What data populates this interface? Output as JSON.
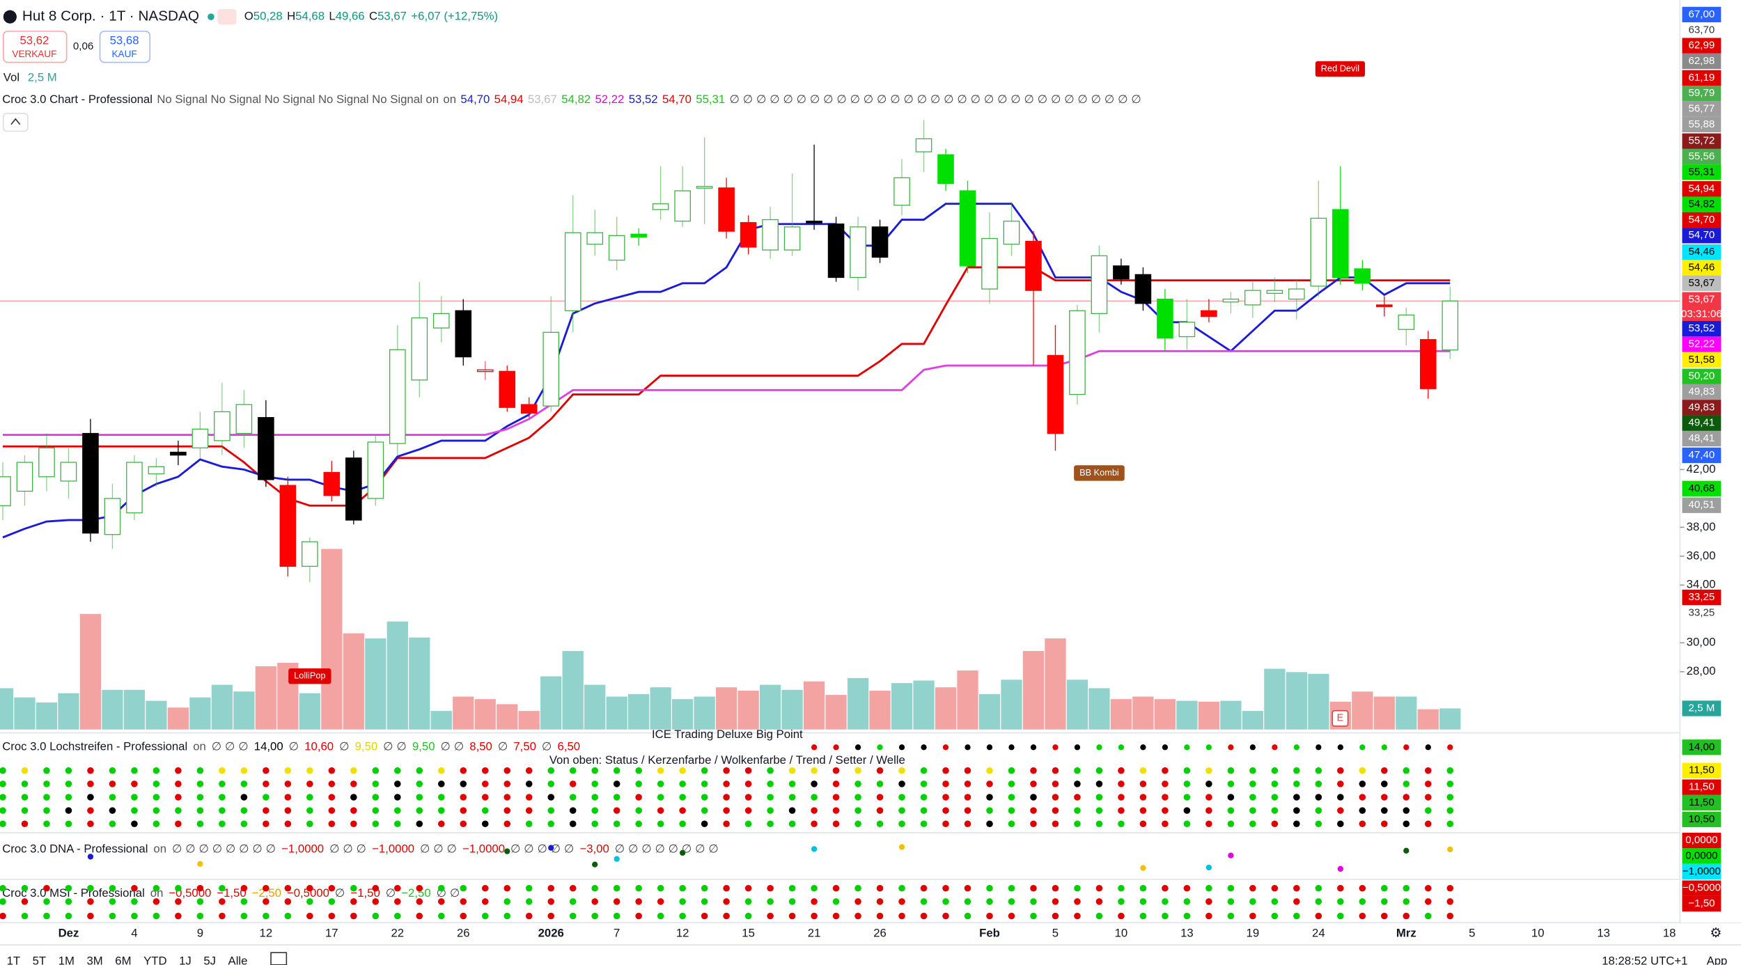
{
  "header": {
    "symbol": "Hut 8 Corp. · 1T · NASDAQ",
    "ohlc_labels": [
      "O",
      "H",
      "L",
      "C"
    ],
    "ohlc_values": [
      "50,28",
      "54,68",
      "49,66",
      "53,67"
    ],
    "change": "+6,07 (+12,75%)",
    "sell_price": "53,62",
    "sell_label": "VERKAUF",
    "spread": "0,06",
    "buy_price": "53,68",
    "buy_label": "KAUF",
    "vol_label": "Vol",
    "vol_value": "2,5 M"
  },
  "chart_legend": {
    "name": "Croc 3.0 Chart - Professional",
    "signals": "No Signal No Signal No Signal No Signal No Signal on",
    "status": "on",
    "values": [
      {
        "label": "54,70",
        "color": "#1a1ad9"
      },
      {
        "label": "54,94",
        "color": "#e00000"
      },
      {
        "label": "53,67",
        "color": "#bdbdbd"
      },
      {
        "label": "54,82",
        "color": "#22c022"
      },
      {
        "label": "52,22",
        "color": "#e000e0"
      },
      {
        "label": "53,52",
        "color": "#1a1ad9"
      },
      {
        "label": "54,70",
        "color": "#e00000"
      },
      {
        "label": "55,31",
        "color": "#22c022"
      }
    ],
    "symbols": "∅ ∅ ∅ ∅ ∅ ∅ ∅ ∅ ∅ ∅ ∅ ∅ ∅ ∅ ∅ ∅ ∅ ∅ ∅ ∅ ∅ ∅ ∅ ∅ ∅ ∅ ∅ ∅ ∅ ∅ ∅"
  },
  "price_axis": {
    "ylim": [
      24,
      74.5
    ],
    "ticks": [
      {
        "value": 42,
        "label": "42,00"
      },
      {
        "value": 38,
        "label": "38,00"
      },
      {
        "value": 36,
        "label": "36,00"
      },
      {
        "value": 34,
        "label": "34,00"
      },
      {
        "value": 30,
        "label": "30,00"
      },
      {
        "value": 28,
        "label": "28,00"
      }
    ]
  },
  "candle_colors": {
    "up": "#3cb043",
    "down": "#e00000"
  },
  "candles": [
    [
      39.5,
      42.5,
      38.5,
      41.5,
      "#ffffff"
    ],
    [
      40.5,
      43,
      39.5,
      42.5,
      "#ffffff"
    ],
    [
      41.5,
      44.5,
      40.5,
      43.5,
      "#ffffff"
    ],
    [
      41.2,
      43.5,
      40,
      42.5,
      "#ffffff"
    ],
    [
      44.5,
      45.5,
      37,
      37.6,
      "#000000"
    ],
    [
      37.5,
      41,
      36.5,
      40,
      "#ffffff"
    ],
    [
      39,
      43,
      38.5,
      42.5,
      "#ffffff"
    ],
    [
      41.7,
      42.8,
      40.8,
      42.2,
      "#ffffff"
    ],
    [
      43.2,
      44,
      42.3,
      43,
      "#000000"
    ],
    [
      43.5,
      46,
      42.8,
      44.8,
      "#ffffff"
    ],
    [
      44,
      48,
      43,
      46,
      "#ffffff"
    ],
    [
      44.5,
      47.5,
      43.5,
      46.5,
      "#ffffff"
    ],
    [
      45.6,
      46.8,
      40.8,
      41.3,
      "#000000"
    ],
    [
      40.9,
      41.5,
      34.6,
      35.3,
      "#ff0000"
    ],
    [
      35.3,
      37.3,
      34.2,
      37,
      "#ffffff"
    ],
    [
      41.8,
      42.6,
      39.8,
      40.2,
      "#ff0000"
    ],
    [
      42.8,
      43.3,
      38.2,
      38.5,
      "#000000"
    ],
    [
      40,
      44.4,
      39.5,
      43.9,
      "#ffffff"
    ],
    [
      43.8,
      52,
      43,
      50.3,
      "#ffffff"
    ],
    [
      48.2,
      55,
      47,
      52.5,
      "#ffffff"
    ],
    [
      51.8,
      54,
      50.8,
      52.8,
      "#ffffff"
    ],
    [
      53,
      53.8,
      49.2,
      49.8,
      "#000000"
    ],
    [
      48.9,
      49.5,
      48.2,
      48.8,
      "#ffffff"
    ],
    [
      48.8,
      49.2,
      46,
      46.3,
      "#ff0000"
    ],
    [
      46.5,
      47,
      45.6,
      45.9,
      "#ff0000"
    ],
    [
      46.4,
      54,
      46,
      51.5,
      "#ffffff"
    ],
    [
      53,
      61,
      51.5,
      58.4,
      "#ffffff"
    ],
    [
      57.6,
      60,
      56.8,
      58.4,
      "#ffffff"
    ],
    [
      56.5,
      59.5,
      55.8,
      58.2,
      "#ffffff"
    ],
    [
      58.1,
      58.7,
      57.5,
      58.3,
      "#00e000"
    ],
    [
      60,
      63,
      59.3,
      60.4,
      "#ffffff"
    ],
    [
      59.2,
      63,
      58.8,
      61.3,
      "#ffffff"
    ],
    [
      61.5,
      65,
      59,
      61.6,
      "#ffffff"
    ],
    [
      61.5,
      62.2,
      58,
      58.5,
      "#ff0000"
    ],
    [
      59.1,
      59.6,
      56.9,
      57.4,
      "#ff0000"
    ],
    [
      57.2,
      60.2,
      56.6,
      59.3,
      "#ffffff"
    ],
    [
      57.2,
      62.5,
      56.8,
      58.8,
      "#ffffff"
    ],
    [
      59.2,
      64.5,
      58.6,
      59.1,
      "#000000"
    ],
    [
      59,
      59.5,
      55,
      55.3,
      "#000000"
    ],
    [
      55.3,
      59.5,
      54.4,
      58.8,
      "#ffffff"
    ],
    [
      58.8,
      59.3,
      56.3,
      56.7,
      "#000000"
    ],
    [
      60.3,
      63.5,
      59.6,
      62.2,
      "#ffffff"
    ],
    [
      64,
      66.2,
      62.6,
      64.9,
      "#ffffff"
    ],
    [
      63.8,
      64.2,
      61.3,
      61.8,
      "#00e000"
    ],
    [
      61.3,
      62,
      55.6,
      56.1,
      "#00e000"
    ],
    [
      54.5,
      59.8,
      53.5,
      58,
      "#ffffff"
    ],
    [
      57.6,
      60.5,
      56.8,
      59.2,
      "#ffffff"
    ],
    [
      57.8,
      58.5,
      49.2,
      54.4,
      "#ff0000"
    ],
    [
      49.9,
      52,
      43.3,
      44.5,
      "#ff0000"
    ],
    [
      47.2,
      53.4,
      46.5,
      53,
      "#ffffff"
    ],
    [
      52.8,
      57.5,
      51.5,
      56.8,
      "#ffffff"
    ],
    [
      56.1,
      56.6,
      54.8,
      55.2,
      "#000000"
    ],
    [
      55.5,
      56,
      53,
      53.5,
      "#000000"
    ],
    [
      53.8,
      54.5,
      50.2,
      51.1,
      "#00e000"
    ],
    [
      51.2,
      53.8,
      50.3,
      52.2,
      "#ffffff"
    ],
    [
      53,
      53.8,
      52.2,
      52.6,
      "#ff0000"
    ],
    [
      53.6,
      54.3,
      52.8,
      53.8,
      "#ffffff"
    ],
    [
      53.4,
      55,
      52.5,
      54.4,
      "#ffffff"
    ],
    [
      54.2,
      55.3,
      53.6,
      54.4,
      "#ffffff"
    ],
    [
      53.8,
      55.2,
      52.4,
      54.5,
      "#ffffff"
    ],
    [
      54.7,
      62,
      54,
      59.4,
      "#ffffff"
    ],
    [
      60,
      63,
      54.8,
      55.3,
      "#00e000"
    ],
    [
      55.9,
      56.5,
      54.4,
      54.9,
      "#00e000"
    ],
    [
      53.4,
      54,
      52.6,
      53.3,
      "#ff0000"
    ],
    [
      51.7,
      53.2,
      50.6,
      52.7,
      "#ffffff"
    ],
    [
      51,
      51.6,
      46.9,
      47.6,
      "#ff0000"
    ],
    [
      50.28,
      54.68,
      49.66,
      53.67,
      "#ffffff"
    ]
  ],
  "volume": [
    4.9,
    3.8,
    3.2,
    4.3,
    13.7,
    4.7,
    4.7,
    3.4,
    2.6,
    3.8,
    5.3,
    4.5,
    7.5,
    7.9,
    4.3,
    21.4,
    11.4,
    10.8,
    12.8,
    10.9,
    2.2,
    3.9,
    3.6,
    3.0,
    2.2,
    6.3,
    9.3,
    5.3,
    3.9,
    4.2,
    5.0,
    3.6,
    3.9,
    5.0,
    4.6,
    5.3,
    4.7,
    5.7,
    4.1,
    6.1,
    4.6,
    5.5,
    5.8,
    5.0,
    7.0,
    4.2,
    5.9,
    9.3,
    10.8,
    5.9,
    4.9,
    3.6,
    3.9,
    3.6,
    3.4,
    3.3,
    3.4,
    2.2,
    7.2,
    6.8,
    6.6,
    3.3,
    4.5,
    3.9,
    3.9,
    2.4,
    2.5
  ],
  "volume_colors": {
    "up": "#92d2cc",
    "down": "#f4a3a3"
  },
  "lines": [
    {
      "color": "#e00000",
      "values": [
        43.6,
        43.6,
        43.6,
        43.6,
        43.6,
        43.6,
        43.6,
        43.6,
        43.6,
        43.6,
        43.6,
        42.5,
        41.2,
        40,
        39.5,
        39.5,
        39.5,
        40.8,
        42.8,
        42.8,
        42.8,
        42.8,
        42.8,
        43.5,
        44.2,
        45.5,
        47.2,
        47.2,
        47.2,
        47.2,
        48.5,
        48.5,
        48.5,
        48.5,
        48.5,
        48.5,
        48.5,
        48.5,
        48.5,
        48.5,
        49.5,
        50.7,
        50.7,
        53.4,
        56,
        56,
        56,
        56,
        55.1,
        55.1,
        55.1,
        55.1,
        55.1,
        55.1,
        55.1,
        55.1,
        55.1,
        55.1,
        55.1,
        55.1,
        55.1,
        55.1,
        55.1,
        55.1,
        55.1,
        55.1,
        55.1
      ]
    },
    {
      "color": "#1a1ad9",
      "values": [
        37.3,
        37.9,
        38.4,
        38.5,
        38.5,
        38.8,
        40.2,
        41,
        41.5,
        42.7,
        42.2,
        42,
        41.5,
        41.3,
        41.3,
        40.8,
        40.5,
        41,
        42.9,
        43.4,
        44,
        44,
        44,
        45,
        45.8,
        48.5,
        52.8,
        53.5,
        53.9,
        54.3,
        54.3,
        54.9,
        54.9,
        56,
        58.6,
        59,
        59,
        59,
        59,
        57.5,
        57.5,
        59.3,
        59.3,
        60.4,
        60.4,
        60.4,
        60.4,
        58.3,
        55.3,
        55.3,
        55.3,
        54.3,
        53.7,
        52.2,
        52.2,
        51.2,
        50.2,
        51.6,
        53,
        53,
        54.2,
        55.3,
        55.3,
        54.1,
        54.9,
        54.9,
        54.9
      ]
    },
    {
      "color": "#e040e0",
      "values": [
        44.4,
        44.4,
        44.4,
        44.4,
        44.4,
        44.4,
        44.4,
        44.4,
        44.4,
        44.4,
        44.4,
        44.4,
        44.4,
        44.4,
        44.4,
        44.4,
        44.4,
        44.4,
        44.4,
        44.4,
        44.4,
        44.4,
        44.4,
        44.8,
        45.5,
        46.5,
        47.5,
        47.5,
        47.5,
        47.5,
        47.5,
        47.5,
        47.5,
        47.5,
        47.5,
        47.5,
        47.5,
        47.5,
        47.5,
        47.5,
        47.5,
        47.5,
        48.9,
        49.2,
        49.2,
        49.2,
        49.2,
        49.2,
        49.2,
        49.6,
        50.2,
        50.2,
        50.2,
        50.2,
        50.2,
        50.2,
        50.2,
        50.2,
        50.2,
        50.2,
        50.2,
        50.2,
        50.2,
        50.2,
        50.2,
        50.2,
        50.2
      ]
    }
  ],
  "last_price": {
    "value": 53.67,
    "countdown": "03:31:06"
  },
  "price_tags": [
    {
      "label": "67,00",
      "bg": "#2962ff",
      "fg": "#fff"
    },
    {
      "label": "63,70",
      "bg": "#ffffff",
      "fg": "#333"
    },
    {
      "label": "62,99",
      "bg": "#e00000",
      "fg": "#fff"
    },
    {
      "label": "62,98",
      "bg": "#8a8a8a",
      "fg": "#fff"
    },
    {
      "label": "61,19",
      "bg": "#e00000",
      "fg": "#fff"
    },
    {
      "label": "59,79",
      "bg": "#4caf50",
      "fg": "#fff"
    },
    {
      "label": "56,77",
      "bg": "#9e9e9e",
      "fg": "#fff"
    },
    {
      "label": "55,88",
      "bg": "#9e9e9e",
      "fg": "#fff"
    },
    {
      "label": "55,72",
      "bg": "#8b1a1a",
      "fg": "#fff"
    },
    {
      "label": "55,56",
      "bg": "#4caf50",
      "fg": "#fff"
    },
    {
      "label": "55,31",
      "bg": "#00e000",
      "fg": "#000"
    },
    {
      "label": "54,94",
      "bg": "#e00000",
      "fg": "#fff"
    },
    {
      "label": "54,82",
      "bg": "#00e000",
      "fg": "#000"
    },
    {
      "label": "54,70",
      "bg": "#e00000",
      "fg": "#fff"
    },
    {
      "label": "54,70",
      "bg": "#1a1ad9",
      "fg": "#fff"
    },
    {
      "label": "54,46",
      "bg": "#00e5ff",
      "fg": "#000"
    },
    {
      "label": "54,46",
      "bg": "#ffee00",
      "fg": "#000"
    },
    {
      "label": "53,67",
      "bg": "#bdbdbd",
      "fg": "#000"
    },
    {
      "label": "53,67",
      "bg": "#f23645",
      "fg": "#fff"
    },
    {
      "label": "53,52",
      "bg": "#1a1ad9",
      "fg": "#fff"
    },
    {
      "label": "52,22",
      "bg": "#ff00ff",
      "fg": "#fff"
    },
    {
      "label": "51,58",
      "bg": "#ffee00",
      "fg": "#000"
    },
    {
      "label": "50,20",
      "bg": "#22c022",
      "fg": "#fff"
    },
    {
      "label": "49,83",
      "bg": "#9e9e9e",
      "fg": "#fff"
    },
    {
      "label": "49,83",
      "bg": "#8b1a1a",
      "fg": "#fff"
    },
    {
      "label": "49,41",
      "bg": "#0a5c0a",
      "fg": "#fff"
    },
    {
      "label": "48,41",
      "bg": "#9e9e9e",
      "fg": "#fff"
    },
    {
      "label": "47,40",
      "bg": "#2962ff",
      "fg": "#fff"
    },
    {
      "label": "40,68",
      "bg": "#00e000",
      "fg": "#000"
    },
    {
      "label": "40,51",
      "bg": "#9e9e9e",
      "fg": "#fff"
    },
    {
      "label": "33,25",
      "bg": "#e00000",
      "fg": "#fff"
    },
    {
      "label": "33,25",
      "bg": "#ffffff",
      "fg": "#333"
    },
    {
      "label": "2,5 M",
      "bg": "#26a69a",
      "fg": "#fff"
    }
  ],
  "pane_tags": [
    {
      "label": "14,00",
      "bg": "#22c022",
      "fg": "#000"
    },
    {
      "label": "11,50",
      "bg": "#ffee00",
      "fg": "#000"
    },
    {
      "label": "11,50",
      "bg": "#e00000",
      "fg": "#fff"
    },
    {
      "label": "11,50",
      "bg": "#22c022",
      "fg": "#000"
    },
    {
      "label": "10,50",
      "bg": "#22c022",
      "fg": "#000"
    },
    {
      "label": "0,0000",
      "bg": "#e00000",
      "fg": "#fff"
    },
    {
      "label": "0,0000",
      "bg": "#00e000",
      "fg": "#000"
    },
    {
      "label": "−1,0000",
      "bg": "#00e5ff",
      "fg": "#000"
    },
    {
      "label": "−0,5000",
      "bg": "#e00000",
      "fg": "#fff"
    },
    {
      "label": "−1,50",
      "bg": "#e00000",
      "fg": "#fff"
    }
  ],
  "annotations": {
    "red_devil": "Red Devil",
    "bb_kombi": "BB Kombi",
    "lollipop": "LolliPop",
    "earnings": "E"
  },
  "lochstreifen": {
    "name": "Croc 3.0 Lochstreifen - Professional",
    "status": "on",
    "items": [
      {
        "label": "∅ ∅ ∅",
        "color": "#444"
      },
      {
        "label": "14,00",
        "color": "#000"
      },
      {
        "label": "∅",
        "color": "#444"
      },
      {
        "label": "10,60",
        "color": "#e00000"
      },
      {
        "label": "∅",
        "color": "#444"
      },
      {
        "label": "9,50",
        "color": "#e6d200"
      },
      {
        "label": "∅ ∅",
        "color": "#444"
      },
      {
        "label": "9,50",
        "color": "#22c022"
      },
      {
        "label": "∅ ∅",
        "color": "#444"
      },
      {
        "label": "8,50",
        "color": "#e00000"
      },
      {
        "label": "∅",
        "color": "#444"
      },
      {
        "label": "7,50",
        "color": "#e00000"
      },
      {
        "label": "∅",
        "color": "#444"
      },
      {
        "label": "6,50",
        "color": "#e00000"
      }
    ]
  },
  "ice": {
    "title": "ICE Trading Deluxe Big Point",
    "subtitle": "Von oben: Status / Kerzenfarbe / Wolkenfarbe / Trend / Setter / Welle"
  },
  "dna": {
    "name": "Croc 3.0 DNA - Professional",
    "status": "on",
    "items": [
      {
        "label": "∅ ∅ ∅ ∅ ∅ ∅ ∅ ∅",
        "color": "#444"
      },
      {
        "label": "−1,0000",
        "color": "#e00000"
      },
      {
        "label": "∅ ∅ ∅",
        "color": "#444"
      },
      {
        "label": "−1,0000",
        "color": "#e00000"
      },
      {
        "label": "∅ ∅ ∅",
        "color": "#444"
      },
      {
        "label": "−1,0000",
        "color": "#e00000"
      },
      {
        "label": "∅ ∅ ∅ ∅ ∅",
        "color": "#444"
      },
      {
        "label": "−3,00",
        "color": "#e00000"
      },
      {
        "label": "∅ ∅ ∅ ∅ ∅ ∅ ∅ ∅",
        "color": "#444"
      }
    ]
  },
  "msi": {
    "name": "Croc 3.0 MSI - Professional",
    "status": "on",
    "items": [
      {
        "label": "−0,5000",
        "color": "#e00000"
      },
      {
        "label": "−1,50",
        "color": "#e00000"
      },
      {
        "label": "−2,50",
        "color": "#e6a000"
      },
      {
        "label": "−0,5000",
        "color": "#e00000"
      },
      {
        "label": "∅",
        "color": "#444"
      },
      {
        "label": "−1,50",
        "color": "#e00000"
      },
      {
        "label": "∅",
        "color": "#444"
      },
      {
        "label": "−2,50",
        "color": "#22c022"
      },
      {
        "label": "∅ ∅",
        "color": "#444"
      }
    ]
  },
  "x_labels": [
    "Dez",
    "4",
    "9",
    "12",
    "17",
    "22",
    "26",
    "2026",
    "7",
    "12",
    "15",
    "21",
    "26",
    "Feb",
    "5",
    "10",
    "13",
    "19",
    "24",
    "Mrz",
    "5",
    "10",
    "13",
    "18"
  ],
  "toolbar": {
    "ranges": [
      "1T",
      "5T",
      "1M",
      "3M",
      "6M",
      "YTD",
      "1J",
      "5J",
      "Alle"
    ],
    "clock": "18:28:52 UTC+1",
    "app": "App"
  }
}
